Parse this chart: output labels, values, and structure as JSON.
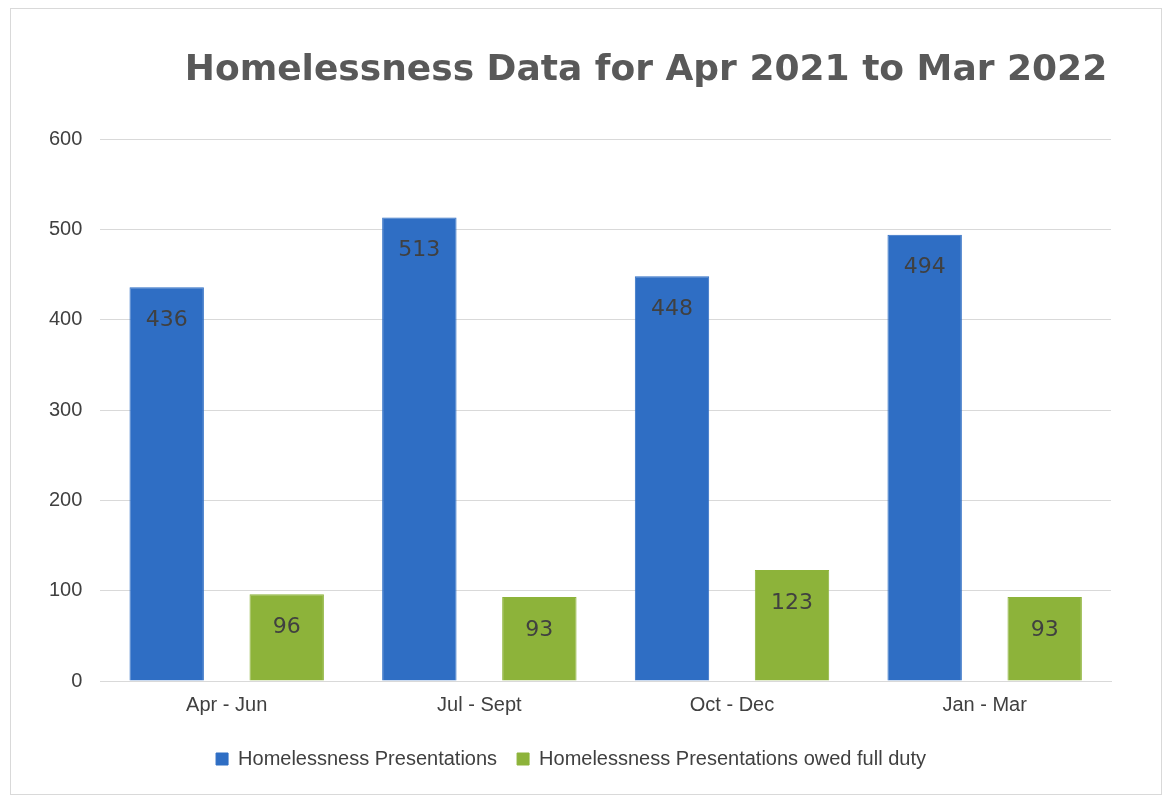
{
  "chart_data": {
    "type": "bar",
    "title": "Homelessness Data for Apr 2021 to Mar 2022",
    "categories": [
      "Apr - Jun",
      "Jul - Sept",
      "Oct - Dec",
      "Jan - Mar"
    ],
    "series": [
      {
        "name": "Homelessness Presentations",
        "color": "#2f6ec4",
        "values": [
          436,
          513,
          448,
          494
        ]
      },
      {
        "name": "Homelessness Presentations owed full duty",
        "color": "#8db33a",
        "values": [
          96,
          93,
          123,
          93
        ]
      }
    ],
    "ylim": [
      0,
      600
    ],
    "yticks": [
      0,
      100,
      200,
      300,
      400,
      500,
      600
    ],
    "grid": "y",
    "legend": "bottom",
    "data_labels": true
  }
}
